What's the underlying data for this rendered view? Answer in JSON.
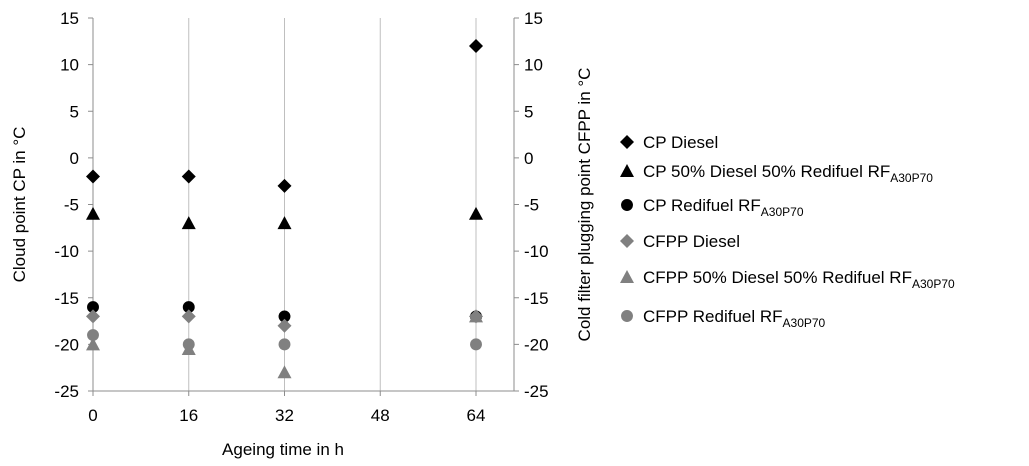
{
  "chart_data": {
    "type": "scatter",
    "xlabel": "Ageing time in h",
    "ylabel": "Cloud point CP in °C",
    "y2label": "Cold filter plugging point CFPP in °C",
    "x_ticks": [
      0,
      16,
      32,
      48,
      64
    ],
    "y_ticks": [
      15,
      10,
      5,
      0,
      -5,
      -10,
      -15,
      -20,
      -25
    ],
    "y_tick_labels": [
      "15",
      "10",
      "5",
      "0",
      "-5",
      "-10",
      "-15",
      "-20",
      "-25"
    ],
    "xlim": [
      0,
      64
    ],
    "ylim": [
      -25,
      15
    ],
    "grid": "vertical lines at x ticks",
    "legend_position": "right",
    "series": [
      {
        "name": "CP Diesel",
        "sub": "",
        "marker": "diamond",
        "color": "#000000",
        "x": [
          0,
          16,
          32,
          64
        ],
        "y": [
          -2,
          -2,
          -3,
          12
        ]
      },
      {
        "name": "CP 50% Diesel 50% Redifuel RF",
        "sub": "A30P70",
        "marker": "triangle",
        "color": "#000000",
        "x": [
          0,
          16,
          32,
          64
        ],
        "y": [
          -6,
          -7,
          -7,
          -6
        ]
      },
      {
        "name": "CP Redifuel RF",
        "sub": "A30P70",
        "marker": "circle",
        "color": "#000000",
        "x": [
          0,
          16,
          32,
          64
        ],
        "y": [
          -16,
          -16,
          -17,
          -17
        ]
      },
      {
        "name": "CFPP Diesel",
        "sub": "",
        "marker": "diamond",
        "color": "#808080",
        "x": [
          0,
          16,
          32,
          64
        ],
        "y": [
          -17,
          -17,
          -18,
          -17
        ]
      },
      {
        "name": "CFPP 50% Diesel 50% Redifuel RF",
        "sub": "A30P70",
        "marker": "triangle",
        "color": "#808080",
        "x": [
          0,
          16,
          32,
          64
        ],
        "y": [
          -20,
          -20.5,
          -23,
          -17
        ]
      },
      {
        "name": "CFPP Redifuel RF",
        "sub": "A30P70",
        "marker": "circle",
        "color": "#808080",
        "x": [
          0,
          16,
          32,
          64
        ],
        "y": [
          -19,
          -20,
          -20,
          -20
        ]
      }
    ]
  }
}
